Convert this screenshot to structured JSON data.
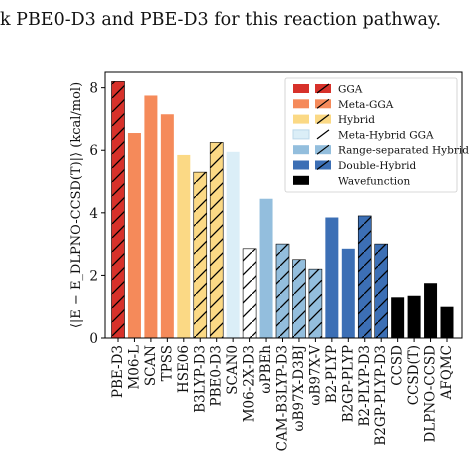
{
  "caption": "k PBE0-D3 and PBE-D3 for this reaction pathway.",
  "chart_data": {
    "type": "bar",
    "ylabel": "⟨|E − E_DLPNO-CCSD(T)|⟩ (kcal/mol)",
    "ylim": [
      0,
      8.5
    ],
    "yticks": [
      0,
      2,
      4,
      6,
      8
    ],
    "grid": false,
    "legend_placement": "top-right",
    "legend": [
      {
        "label": "GGA",
        "color": "#d7312a",
        "hatched_variant": true
      },
      {
        "label": "Meta-GGA",
        "color": "#f58a5a",
        "hatched_variant": true
      },
      {
        "label": "Hybrid",
        "color": "#fbd985",
        "hatched_variant": true
      },
      {
        "label": "Meta-Hybrid GGA",
        "color": "#dbeef7",
        "hatched_variant": true
      },
      {
        "label": "Range-separated Hybrid",
        "color": "#93bedd",
        "hatched_variant": true
      },
      {
        "label": "Double-Hybrid",
        "color": "#3c6fb5",
        "hatched_variant": true
      },
      {
        "label": "Wavefunction",
        "color": "#000000",
        "hatched_variant": false
      }
    ],
    "categories": [
      "PBE-D3",
      "M06-L",
      "SCAN",
      "TPSS",
      "HSE06",
      "B3LYP-D3",
      "PBE0-D3",
      "SCAN0",
      "M06-2X-D3",
      "ωPBEh",
      "CAM-B3LYP-D3",
      "ωB97X-D3BJ",
      "ωB97X-V",
      "B2-PLYP",
      "B2GP-PLYP",
      "B2-PLYP-D3",
      "B2GP-PLYP-D3",
      "CCSD",
      "CCSD(T)",
      "DLPNO-CCSD",
      "AFQMC"
    ],
    "values": [
      8.2,
      6.55,
      7.75,
      7.15,
      5.85,
      5.3,
      6.25,
      5.95,
      2.85,
      4.45,
      3.0,
      2.5,
      2.2,
      3.85,
      2.85,
      3.9,
      3.0,
      1.3,
      1.35,
      1.75,
      1.0
    ],
    "series_group": [
      "GGA",
      "Meta-GGA",
      "Meta-GGA",
      "Meta-GGA",
      "Hybrid",
      "Hybrid",
      "Hybrid",
      "Meta-Hybrid GGA",
      "Meta-Hybrid GGA",
      "Range-separated Hybrid",
      "Range-separated Hybrid",
      "Range-separated Hybrid",
      "Range-separated Hybrid",
      "Double-Hybrid",
      "Double-Hybrid",
      "Double-Hybrid",
      "Double-Hybrid",
      "Wavefunction",
      "Wavefunction",
      "Wavefunction",
      "Wavefunction"
    ],
    "colors": [
      "#d7312a",
      "#f58a5a",
      "#f58a5a",
      "#f58a5a",
      "#fbd985",
      "#fbd985",
      "#fbd985",
      "#dbeef7",
      "#ffffff",
      "#93bedd",
      "#93bedd",
      "#93bedd",
      "#93bedd",
      "#3c6fb5",
      "#3c6fb5",
      "#3c6fb5",
      "#3c6fb5",
      "#000000",
      "#000000",
      "#000000",
      "#000000"
    ],
    "hatched": [
      true,
      false,
      false,
      false,
      false,
      true,
      true,
      false,
      true,
      false,
      true,
      true,
      true,
      false,
      false,
      true,
      true,
      false,
      false,
      false,
      false
    ]
  }
}
